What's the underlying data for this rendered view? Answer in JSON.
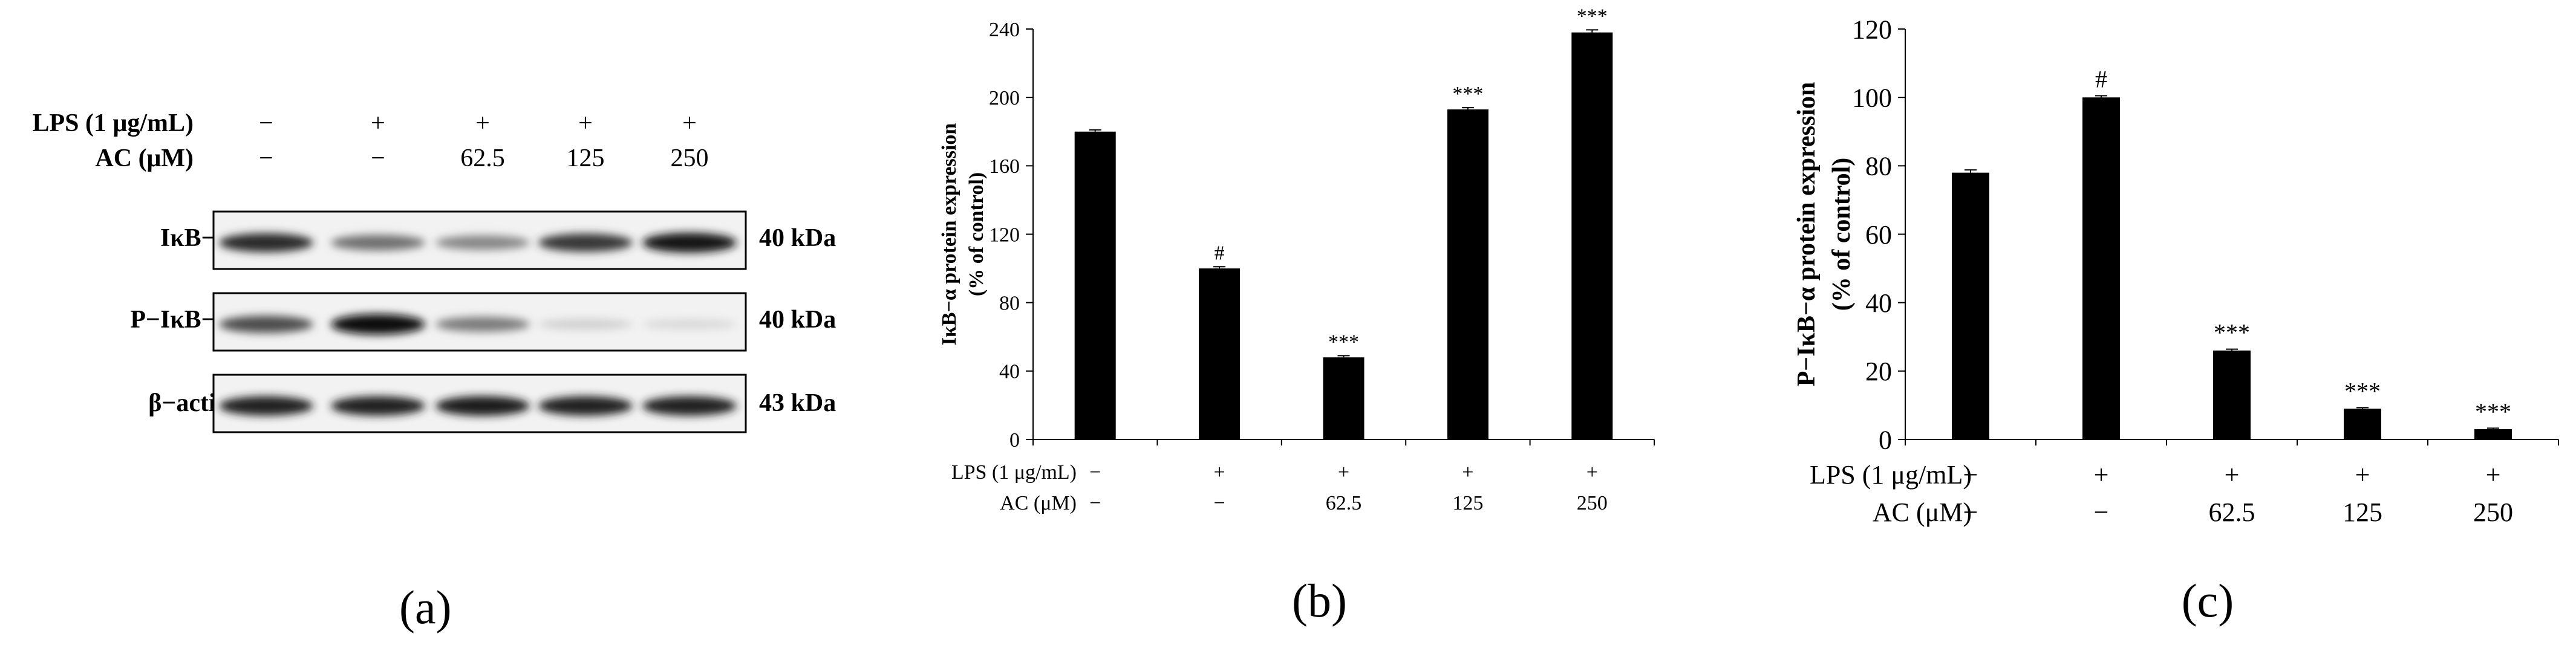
{
  "panel_a": {
    "panel_label": "(a)",
    "treatment_labels": {
      "lps": "LPS (1 μg/mL)",
      "ac": "AC (μM)"
    },
    "lps_values": [
      "−",
      "+",
      "+",
      "+",
      "+"
    ],
    "ac_values": [
      "−",
      "−",
      "62.5",
      "125",
      "250"
    ],
    "blots": [
      {
        "name": "IκB−α",
        "kda": "40 kDa",
        "band_intensity": [
          0.85,
          0.55,
          0.45,
          0.8,
          0.95
        ]
      },
      {
        "name": "P−IκB−α",
        "kda": "40 kDa",
        "band_intensity": [
          0.7,
          1.0,
          0.5,
          0.12,
          0.08
        ]
      },
      {
        "name": "β−actin",
        "kda": "43 kDa",
        "band_intensity": [
          0.9,
          0.9,
          0.92,
          0.9,
          0.9
        ]
      }
    ]
  },
  "chart_data": [
    {
      "type": "bar",
      "panel_label": "(b)",
      "ylabel": "IκB−α protein expression",
      "ylabel2": "(% of control)",
      "ylim": [
        0,
        240
      ],
      "yticks": [
        "0",
        "40",
        "80",
        "120",
        "160",
        "200",
        "240"
      ],
      "categories": [
        "− / −",
        "+ / −",
        "+ / 62.5",
        "+ / 125",
        "+ / 250"
      ],
      "values": [
        180,
        100,
        48,
        193,
        238
      ],
      "errors": [
        1,
        1,
        1,
        1,
        1.5
      ],
      "annotations": [
        "",
        "#",
        "***",
        "***",
        "***"
      ],
      "row_labels": {
        "lps": "LPS (1 μg/mL)",
        "ac": "AC (μM)"
      },
      "lps_values": [
        "−",
        "+",
        "+",
        "+",
        "+"
      ],
      "ac_values": [
        "−",
        "−",
        "62.5",
        "125",
        "250"
      ]
    },
    {
      "type": "bar",
      "panel_label": "(c)",
      "ylabel": "P−IκB−α protein expression",
      "ylabel2": "(% of control)",
      "ylim": [
        0,
        120
      ],
      "yticks": [
        "0",
        "20",
        "40",
        "60",
        "80",
        "100",
        "120"
      ],
      "categories": [
        "− / −",
        "+ / −",
        "+ / 62.5",
        "+ / 125",
        "+ / 250"
      ],
      "values": [
        78,
        100,
        26,
        9,
        3
      ],
      "errors": [
        0.8,
        0.5,
        0.4,
        0.3,
        0.3
      ],
      "annotations": [
        "",
        "#",
        "***",
        "***",
        "***"
      ],
      "row_labels": {
        "lps": "LPS (1 μg/mL)",
        "ac": "AC (μM)"
      },
      "lps_values": [
        "−",
        "+",
        "+",
        "+",
        "+"
      ],
      "ac_values": [
        "−",
        "−",
        "62.5",
        "125",
        "250"
      ]
    }
  ]
}
